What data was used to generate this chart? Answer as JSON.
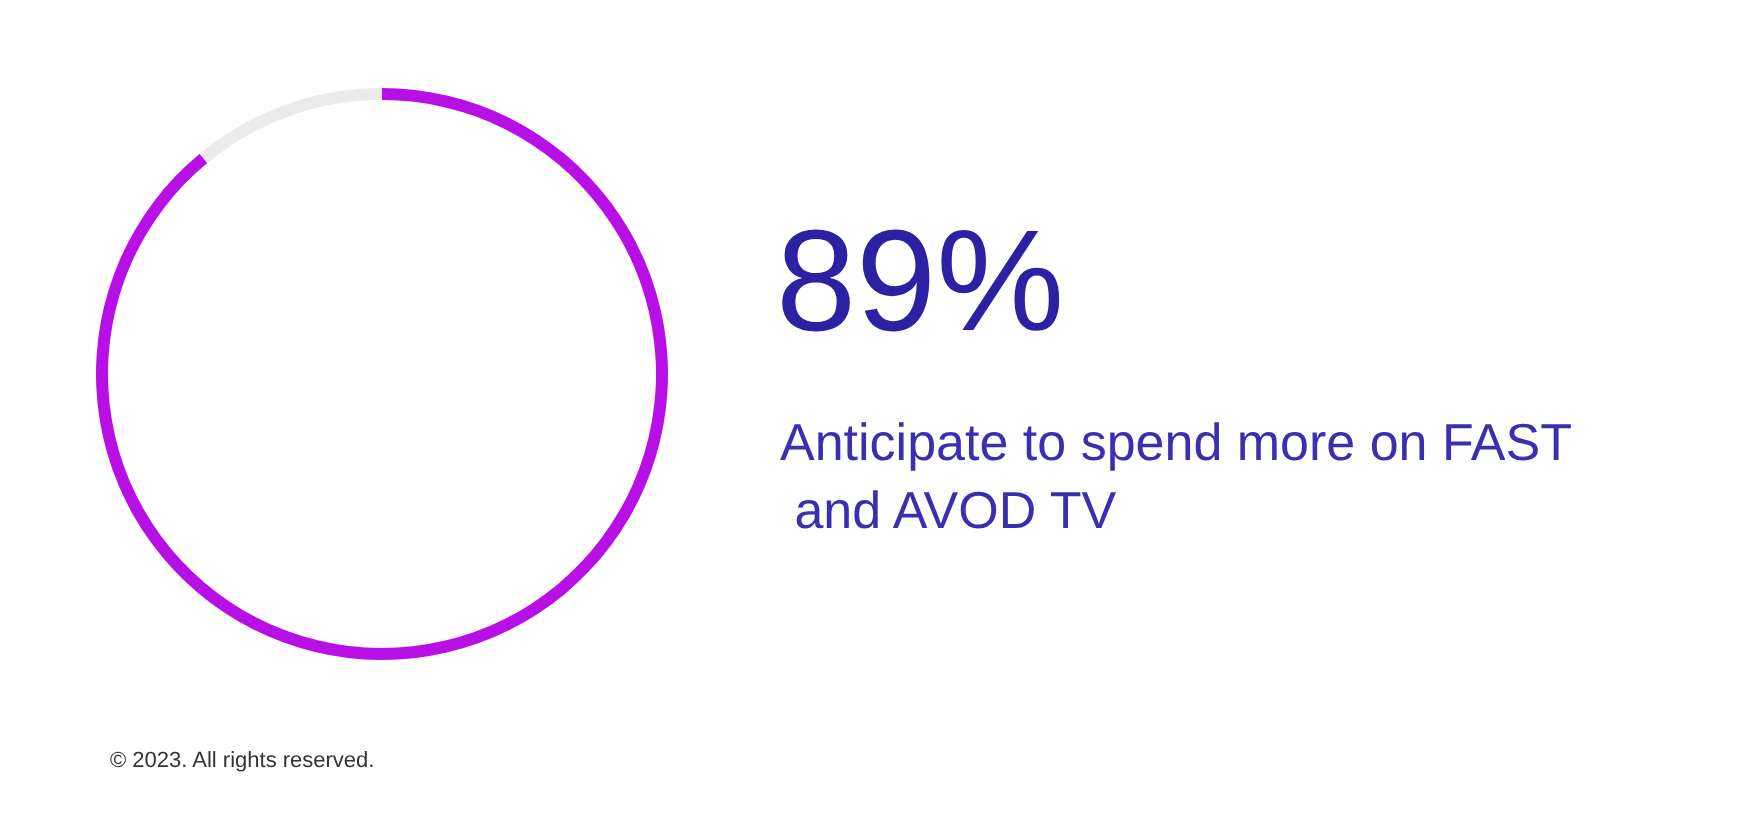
{
  "chart_data": {
    "type": "donut",
    "title": "89%",
    "subtitle": "Anticipate to spend more on FAST and AVOD TV",
    "categories": [
      null,
      null
    ],
    "values": [
      89,
      11
    ],
    "colors": [
      "#b80fe6",
      "#ebebeb"
    ],
    "annotations": [
      "© 2023. All rights reserved."
    ]
  }
}
